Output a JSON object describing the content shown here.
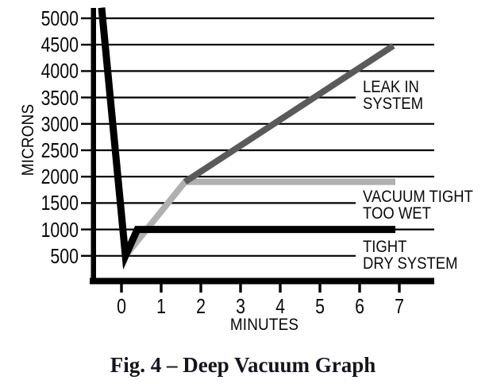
{
  "figure": {
    "caption": "Fig. 4 – Deep Vacuum Graph"
  },
  "chart_data": {
    "type": "line",
    "title": "Deep Vacuum Graph",
    "xlabel": "MINUTES",
    "ylabel": "MICRONS",
    "x_ticks": [
      0,
      1,
      2,
      3,
      4,
      5,
      6,
      7
    ],
    "y_ticks": [
      5000,
      4500,
      4000,
      3500,
      3000,
      2500,
      2000,
      1500,
      1000,
      500
    ],
    "xlim": [
      -0.75,
      7.9
    ],
    "ylim": [
      0,
      5200
    ],
    "grid": "horizontal",
    "axis_color": "#000000",
    "legend_position": "labels-at-line-ends",
    "series": [
      {
        "name": "TIGHT DRY SYSTEM",
        "label_line1": "TIGHT",
        "label_line2": "DRY SYSTEM",
        "color": "#000000",
        "points": [
          [
            -0.5,
            5200
          ],
          [
            0.1,
            500
          ],
          [
            0.4,
            1000
          ],
          [
            6.9,
            1000
          ]
        ]
      },
      {
        "name": "VACUUM TIGHT TOO WET",
        "label_line1": "VACUUM TIGHT",
        "label_line2": "TOO WET",
        "color": "#b0b0b0",
        "points": [
          [
            0.1,
            500
          ],
          [
            1.6,
            1900
          ],
          [
            6.9,
            1900
          ]
        ]
      },
      {
        "name": "LEAK IN SYSTEM",
        "label_line1": "LEAK IN",
        "label_line2": "SYSTEM",
        "color": "#5a5a5a",
        "points": [
          [
            1.6,
            1900
          ],
          [
            6.85,
            4480
          ]
        ]
      }
    ]
  }
}
